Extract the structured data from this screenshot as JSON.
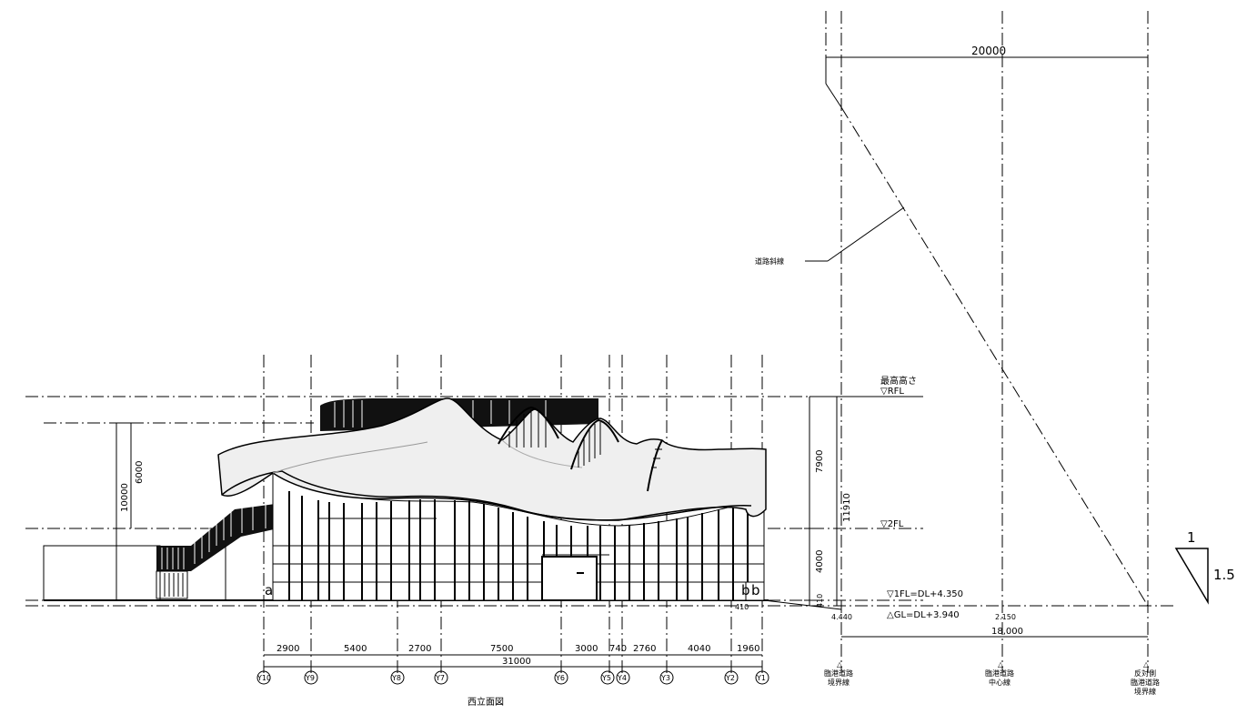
{
  "elevation": {
    "title": "西立面図",
    "span_dims": [
      "2900",
      "5400",
      "2700",
      "7500",
      "3000",
      "740",
      "2760",
      "4040",
      "1960"
    ],
    "total_dim": "31000",
    "grid_labels": [
      "Y10",
      "Y9",
      "Y8",
      "Y7",
      "Y6",
      "Y5",
      "Y4",
      "Y3",
      "Y2",
      "Y1"
    ],
    "height_dims": {
      "h_total": "10000",
      "h_upper": "6000",
      "h_roof": "7900",
      "h_first": "4000",
      "h_overall": "11910",
      "h_base": "410"
    },
    "section_marks": [
      "a",
      "b",
      "b"
    ],
    "small_dim": "410"
  },
  "levels": {
    "top_label": "最高高さ",
    "rfl": "▽RFL",
    "fl2": "▽2FL",
    "fl1": "▽1FL=DL+4.350",
    "gl": "△GL=DL+3.940"
  },
  "road": {
    "width_dim": "20000",
    "slope_label": "道路斜線",
    "road_dim": "18,000",
    "small_dims": [
      "4.440",
      "2.150"
    ],
    "boundary_near": [
      "△",
      "臨港道路",
      "境界線"
    ],
    "center_line": [
      "△",
      "臨港道路",
      "中心線"
    ],
    "boundary_far": [
      "△",
      "反対側",
      "臨港道路",
      "境界線"
    ]
  },
  "slope": {
    "rise": "1",
    "run": "1.5"
  }
}
